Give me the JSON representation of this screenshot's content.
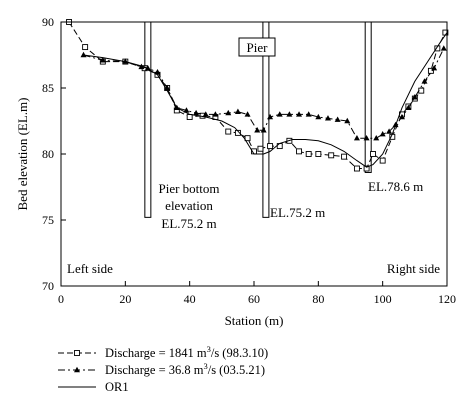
{
  "chart_data": {
    "type": "line",
    "xlabel": "Station (m)",
    "ylabel": "Bed elevation (EL.m)",
    "xlim": [
      0,
      120
    ],
    "ylim": [
      70,
      90
    ],
    "xticks": [
      0,
      20,
      40,
      60,
      80,
      100,
      120
    ],
    "yticks": [
      70,
      75,
      80,
      85,
      90
    ],
    "grid": false,
    "legend_position": "below",
    "series": [
      {
        "name": "Discharge = 1841 m³/s (98.3.10)",
        "legend": {
          "pre": "Discharge = 1841 m",
          "sup": "3",
          "post": "/s (98.3.10)"
        },
        "style": "dashed-square",
        "x": [
          2.5,
          7.5,
          13,
          20,
          26,
          30,
          33,
          36,
          40,
          44,
          48,
          52,
          55,
          58,
          60,
          62,
          65,
          68,
          71,
          74,
          77,
          80,
          84,
          88,
          92,
          95,
          97,
          100,
          103,
          106,
          108,
          110,
          112,
          115,
          117,
          119.5
        ],
        "y": [
          90,
          88.1,
          87.0,
          87.0,
          86.5,
          86.0,
          85.0,
          83.3,
          82.8,
          82.9,
          82.8,
          81.7,
          81.6,
          81.2,
          80.2,
          80.4,
          80.6,
          80.6,
          81.0,
          80.2,
          80.0,
          80.0,
          79.9,
          79.8,
          78.9,
          78.9,
          80.0,
          79.5,
          81.3,
          83.0,
          83.6,
          84.2,
          84.8,
          86.3,
          88.0,
          89.2
        ]
      },
      {
        "name": "Discharge = 36.8 m³/s (03.5.21)",
        "legend": {
          "pre": "Discharge = 36.8 m",
          "sup": "3",
          "post": "/s (03.5.21)"
        },
        "style": "dashdot-triangle",
        "x": [
          7,
          13,
          20,
          25,
          27,
          30,
          33,
          36,
          39,
          42,
          45,
          48,
          52,
          55,
          58,
          61,
          63,
          65,
          68,
          71,
          74,
          77,
          80,
          83,
          86,
          89,
          92,
          95,
          98,
          100,
          102,
          104,
          106,
          108,
          110,
          113,
          116,
          119
        ],
        "y": [
          87.5,
          87.1,
          87.0,
          86.6,
          86.5,
          86.2,
          85.0,
          83.5,
          83.3,
          83.1,
          83.0,
          83.0,
          83.1,
          83.2,
          83.0,
          81.8,
          81.8,
          82.8,
          83.0,
          83.0,
          83.0,
          83.0,
          82.8,
          82.7,
          82.6,
          82.5,
          81.2,
          81.2,
          81.2,
          81.5,
          81.7,
          82.2,
          82.8,
          83.5,
          84.3,
          85.5,
          86.5,
          88.0
        ]
      },
      {
        "name": "OR1",
        "legend": {
          "pre": "OR1",
          "sup": "",
          "post": ""
        },
        "style": "solid",
        "x": [
          7,
          13,
          20,
          26,
          30,
          33,
          36,
          40,
          45,
          50,
          54,
          57,
          60,
          63,
          65,
          68,
          72,
          76,
          80,
          84,
          88,
          92,
          95,
          97,
          100,
          103,
          106,
          110,
          114,
          118,
          120
        ],
        "y": [
          87.5,
          87.3,
          87.0,
          86.6,
          86.0,
          84.8,
          83.5,
          83.0,
          82.8,
          82.5,
          82.0,
          81.2,
          80.0,
          80.0,
          80.2,
          80.8,
          81.1,
          81.1,
          81.0,
          80.7,
          80.2,
          79.5,
          79.0,
          79.2,
          80.0,
          81.5,
          83.5,
          85.5,
          87.0,
          88.5,
          89.2
        ]
      }
    ],
    "piers": [
      {
        "station": 27,
        "bottom_elevation": 75.2
      },
      {
        "station": 63.7,
        "bottom_elevation": 75.2
      },
      {
        "station": 95.5,
        "bottom_elevation": 78.6
      }
    ],
    "annotations": {
      "pier_label": "Pier",
      "pier_bottom_line1": "Pier bottom",
      "pier_bottom_line2": "elevation",
      "pier1_elevation": "EL.75.2 m",
      "pier2_elevation": "EL.75.2 m",
      "pier3_elevation": "EL.78.6 m",
      "left_side": "Left side",
      "right_side": "Right side"
    }
  }
}
